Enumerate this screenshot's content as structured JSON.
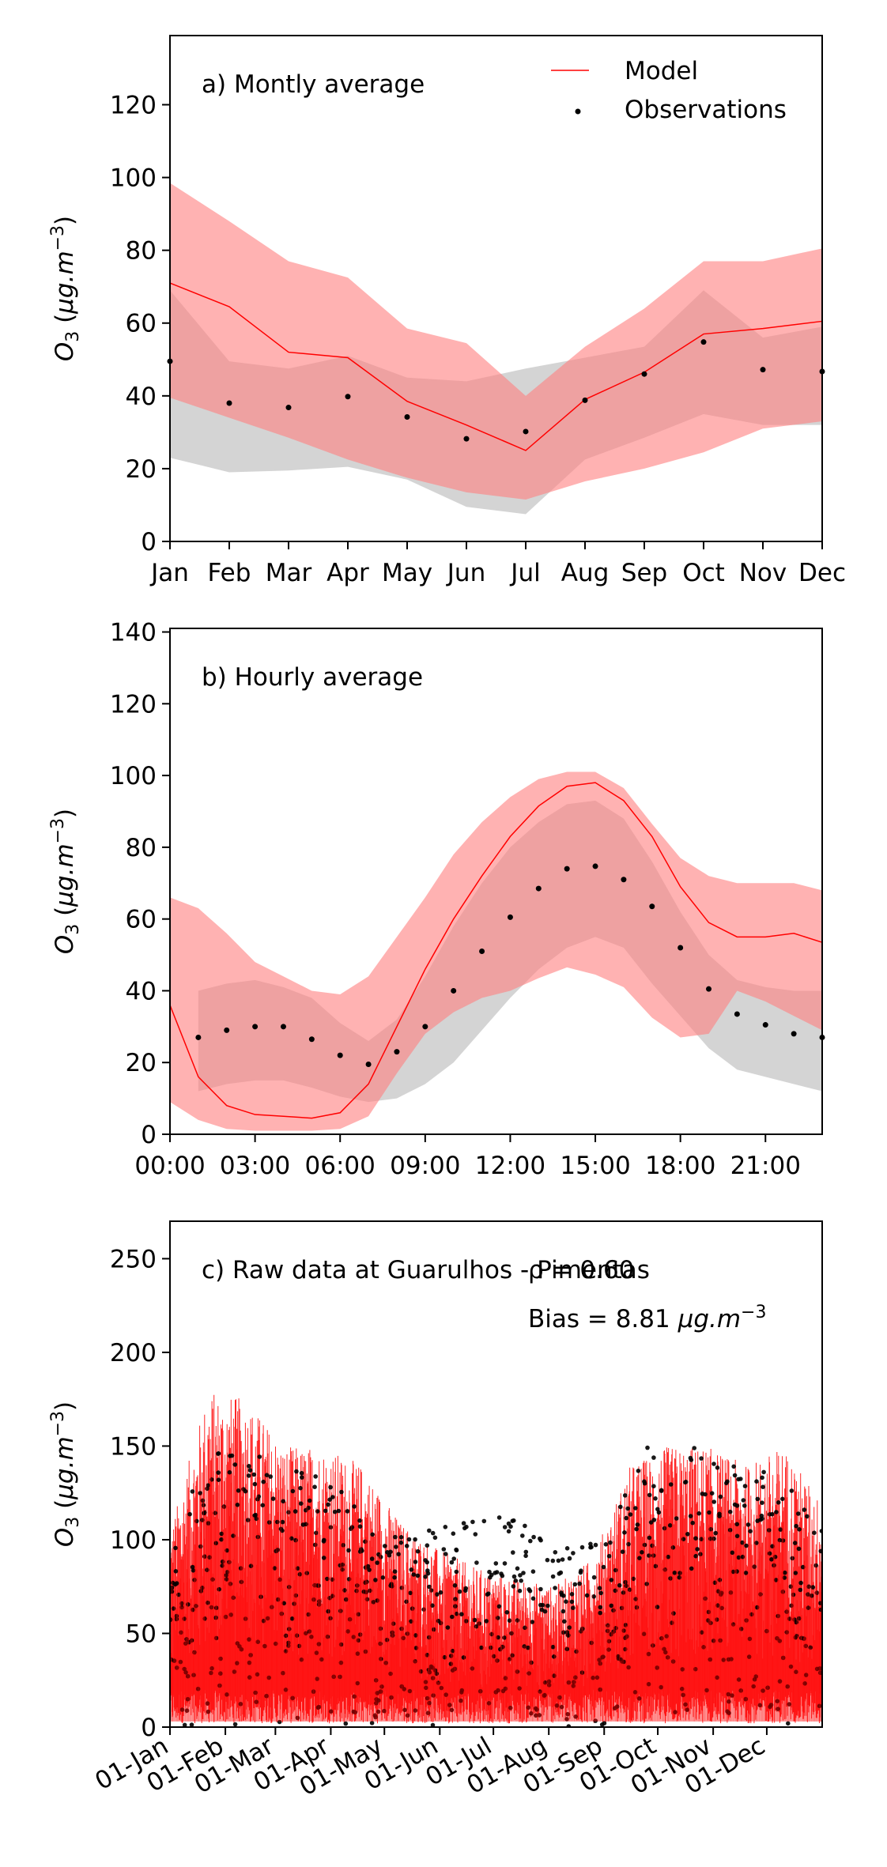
{
  "colors": {
    "model": "#ff0000",
    "model_band": "#ff7f7f",
    "obs": "#000000",
    "obs_band": "#b0b0b0"
  },
  "legend": {
    "model": "Model",
    "observations": "Observations"
  },
  "chart_data": [
    {
      "id": "a",
      "type": "line",
      "title": "a) Montly average",
      "ylabel": "O3 (µg.m-3)",
      "ylim": [
        0,
        139
      ],
      "yticks": [
        0,
        20,
        40,
        60,
        80,
        100,
        120
      ],
      "xlim": [
        0,
        11
      ],
      "categories": [
        "Jan",
        "Feb",
        "Mar",
        "Apr",
        "May",
        "Jun",
        "Jul",
        "Aug",
        "Sep",
        "Oct",
        "Nov",
        "Dec"
      ],
      "series": [
        {
          "name": "Model",
          "kind": "line",
          "values": [
            71,
            64.5,
            52,
            50.5,
            38.5,
            32,
            25,
            39,
            46.5,
            57,
            58.5,
            60.5
          ]
        },
        {
          "name": "Observations",
          "kind": "scatter",
          "values": [
            49.5,
            38,
            36.8,
            39.8,
            34.2,
            28.2,
            30.2,
            38.8,
            46,
            54.8,
            47.2,
            46.7
          ]
        }
      ],
      "bands": [
        {
          "of": "Observations",
          "lower": [
            23,
            19,
            19.5,
            20.5,
            17,
            9.5,
            7.5,
            22.5,
            28.5,
            35,
            32,
            32
          ],
          "upper": [
            69,
            49.5,
            47.5,
            51,
            45,
            44,
            47.5,
            50.5,
            53.5,
            69,
            56,
            59
          ]
        },
        {
          "of": "Model",
          "lower": [
            39.5,
            34,
            28.5,
            22.5,
            17.5,
            13.5,
            11.5,
            16.5,
            20,
            24.5,
            31,
            33
          ]
        },
        {
          "of": "Model",
          "upper": [
            98.5,
            88,
            77,
            72.5,
            58.5,
            54.5,
            40,
            53.5,
            64,
            77,
            77,
            80.5
          ]
        }
      ]
    },
    {
      "id": "b",
      "type": "line",
      "title": "b) Hourly average",
      "ylabel": "O3 (µg.m-3)",
      "ylim": [
        0,
        141
      ],
      "yticks": [
        0,
        20,
        40,
        60,
        80,
        100,
        120,
        140
      ],
      "xlim": [
        0,
        23
      ],
      "x": [
        0,
        1,
        2,
        3,
        4,
        5,
        6,
        7,
        8,
        9,
        10,
        11,
        12,
        13,
        14,
        15,
        16,
        17,
        18,
        19,
        20,
        21,
        22,
        23
      ],
      "xticks": [
        0,
        3,
        6,
        9,
        12,
        15,
        18,
        21
      ],
      "xtick_labels": [
        "00:00",
        "03:00",
        "06:00",
        "09:00",
        "12:00",
        "15:00",
        "18:00",
        "21:00"
      ],
      "series": [
        {
          "name": "Model",
          "kind": "line",
          "values": [
            36,
            16,
            8,
            5.5,
            5,
            4.5,
            6,
            14,
            30,
            46,
            60,
            72,
            83,
            91.5,
            97,
            98,
            93,
            83,
            69,
            59,
            55,
            55,
            56,
            53.5
          ]
        },
        {
          "name": "Observations",
          "kind": "scatter",
          "x": [
            1,
            2,
            3,
            4,
            5,
            6,
            7,
            8,
            9,
            10,
            11,
            12,
            13,
            14,
            15,
            16,
            17,
            18,
            19,
            20,
            21,
            22,
            23
          ],
          "values": [
            27,
            29,
            30,
            30,
            26.5,
            22,
            19.5,
            23,
            30,
            40,
            51,
            60.5,
            68.5,
            74,
            74.7,
            71,
            63.5,
            52,
            40.5,
            33.5,
            30.5,
            28,
            27
          ]
        }
      ],
      "bands": [
        {
          "of": "Observations",
          "x": [
            1,
            2,
            3,
            4,
            5,
            6,
            7,
            8,
            9,
            10,
            11,
            12,
            13,
            14,
            15,
            16,
            17,
            18,
            19,
            20,
            21,
            22,
            23
          ],
          "lower": [
            12,
            14,
            15,
            15,
            13,
            10.5,
            9,
            10,
            14,
            20,
            29,
            38,
            46,
            52,
            55,
            52,
            42,
            33,
            24,
            18,
            16,
            14,
            12
          ],
          "upper": [
            40,
            42,
            43,
            41,
            38,
            31,
            26,
            32,
            44,
            58,
            70,
            80,
            87,
            92,
            93,
            88,
            76,
            62,
            50,
            43,
            41,
            40,
            40
          ]
        },
        {
          "of": "Model",
          "lower": [
            9,
            4,
            1.5,
            1,
            1,
            1,
            1.5,
            5,
            17,
            28,
            34,
            38,
            40,
            43.5,
            46.5,
            44.5,
            41,
            32.5,
            27,
            28,
            40,
            37,
            33,
            29
          ]
        },
        {
          "of": "Model",
          "upper": [
            66,
            63,
            56,
            48,
            44,
            40,
            39,
            44,
            55,
            66,
            78,
            87,
            94,
            99,
            101,
            101,
            96.5,
            86.5,
            77,
            72,
            70,
            70,
            70,
            68
          ]
        }
      ]
    },
    {
      "id": "c",
      "type": "line",
      "title": "c) Raw data at Guarulhos - Pimentas",
      "ylabel": "O3 (µg.m-3)",
      "annotations": [
        "ρ = 0.60",
        "Bias = 8.81 µg.m-3"
      ],
      "ylim": [
        0,
        270
      ],
      "yticks": [
        0,
        50,
        100,
        150,
        200,
        250
      ],
      "xtick_labels": [
        "01-Jan",
        "01-Feb",
        "01-Mar",
        "01-Apr",
        "01-May",
        "01-Jun",
        "01-Jul",
        "01-Aug",
        "01-Sep",
        "01-Oct",
        "01-Nov",
        "01-Dec"
      ],
      "series": [
        {
          "name": "Model",
          "kind": "hourly line",
          "approx_daily_max": [
            105,
            180,
            175,
            150,
            150,
            140,
            110,
            95,
            85,
            80,
            75,
            90,
            140,
            150,
            150,
            140,
            150,
            120
          ]
        },
        {
          "name": "Observations",
          "kind": "hourly scatter",
          "approx_daily_max": [
            100,
            150,
            145,
            140,
            125,
            105,
            105,
            115,
            110,
            95,
            105,
            150,
            150,
            140,
            135,
            110
          ]
        }
      ]
    }
  ]
}
